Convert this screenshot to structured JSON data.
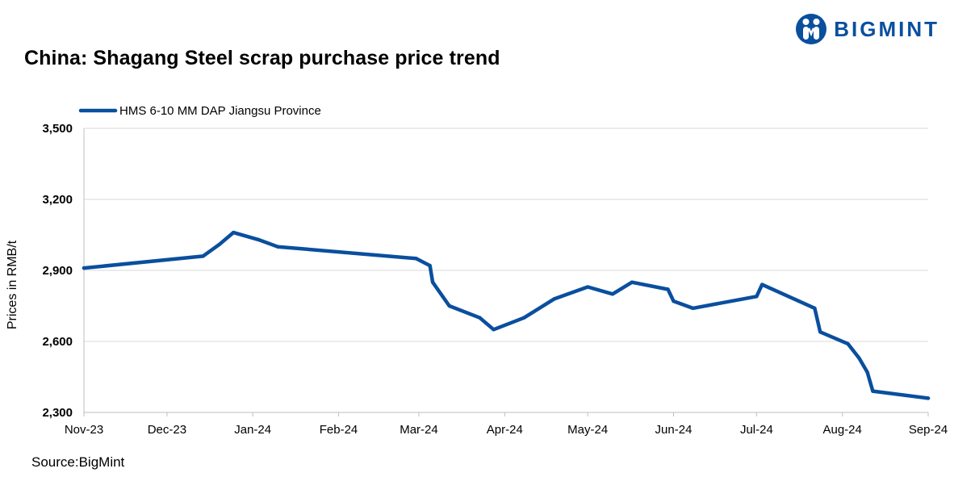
{
  "brand": {
    "name": "BIGMINT",
    "color": "#0a4f9e"
  },
  "source": "Source:BigMint",
  "chart_data": {
    "type": "line",
    "title": "China: Shagang Steel scrap purchase price trend",
    "xlabel": "",
    "ylabel": "Prices in RMB/t",
    "ylim": [
      2300,
      3500
    ],
    "yticks": [
      2300,
      2600,
      2900,
      3200,
      3500
    ],
    "ytick_labels": [
      "2,300",
      "2,600",
      "2,900",
      "3,200",
      "3,500"
    ],
    "xlim": [
      "2023-11-01",
      "2024-09-01"
    ],
    "xtick_labels": [
      "Nov-23",
      "Dec-23",
      "Jan-24",
      "Feb-24",
      "Mar-24",
      "Apr-24",
      "May-24",
      "Jun-24",
      "Jul-24",
      "Aug-24",
      "Sep-24"
    ],
    "grid": "horizontal",
    "legend_position": "top-left",
    "series": [
      {
        "name": "HMS 6-10 MM DAP Jiangsu Province",
        "color": "#0a4f9e",
        "points": [
          {
            "date": "2023-11-01",
            "value": 2910
          },
          {
            "date": "2023-12-14",
            "value": 2960
          },
          {
            "date": "2023-12-20",
            "value": 3010
          },
          {
            "date": "2023-12-25",
            "value": 3060
          },
          {
            "date": "2024-01-03",
            "value": 3030
          },
          {
            "date": "2024-01-10",
            "value": 3000
          },
          {
            "date": "2024-02-29",
            "value": 2950
          },
          {
            "date": "2024-03-05",
            "value": 2920
          },
          {
            "date": "2024-03-06",
            "value": 2850
          },
          {
            "date": "2024-03-12",
            "value": 2750
          },
          {
            "date": "2024-03-23",
            "value": 2700
          },
          {
            "date": "2024-03-28",
            "value": 2650
          },
          {
            "date": "2024-04-08",
            "value": 2700
          },
          {
            "date": "2024-04-19",
            "value": 2780
          },
          {
            "date": "2024-05-01",
            "value": 2830
          },
          {
            "date": "2024-05-10",
            "value": 2800
          },
          {
            "date": "2024-05-17",
            "value": 2850
          },
          {
            "date": "2024-05-30",
            "value": 2820
          },
          {
            "date": "2024-06-01",
            "value": 2770
          },
          {
            "date": "2024-06-08",
            "value": 2740
          },
          {
            "date": "2024-07-01",
            "value": 2790
          },
          {
            "date": "2024-07-03",
            "value": 2840
          },
          {
            "date": "2024-07-22",
            "value": 2740
          },
          {
            "date": "2024-07-24",
            "value": 2640
          },
          {
            "date": "2024-08-03",
            "value": 2590
          },
          {
            "date": "2024-08-07",
            "value": 2530
          },
          {
            "date": "2024-08-10",
            "value": 2470
          },
          {
            "date": "2024-08-12",
            "value": 2390
          },
          {
            "date": "2024-09-01",
            "value": 2360
          }
        ]
      }
    ]
  }
}
